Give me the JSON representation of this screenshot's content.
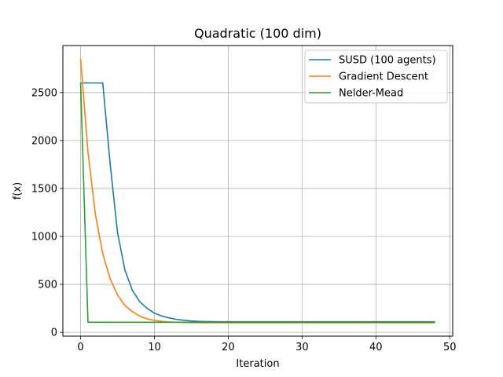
{
  "chart_data": {
    "type": "line",
    "title": "Quadratic (100 dim)",
    "xlabel": "Iteration",
    "ylabel": "f(x)",
    "xlim": [
      -2.4,
      50.4
    ],
    "ylim": [
      -40,
      2990
    ],
    "xticks": [
      0,
      10,
      20,
      30,
      40,
      50
    ],
    "yticks": [
      0,
      500,
      1000,
      1500,
      2000,
      2500
    ],
    "grid": true,
    "legend_position": "top-right",
    "series": [
      {
        "name": "SUSD (100 agents)",
        "color": "#1f77b4",
        "x": [
          0,
          1,
          2,
          3,
          4,
          5,
          6,
          7,
          8,
          9,
          10,
          11,
          12,
          13,
          14,
          15,
          16,
          17,
          18,
          19,
          20,
          21,
          22,
          23,
          24,
          25,
          26,
          27,
          28,
          29,
          30,
          31,
          32,
          33,
          34,
          35,
          36,
          37,
          38,
          39,
          40,
          41,
          42,
          43,
          44,
          45,
          46,
          47,
          48
        ],
        "y": [
          2600,
          2600,
          2600,
          2600,
          1760,
          1040,
          650,
          440,
          320,
          250,
          200,
          170,
          150,
          135,
          125,
          118,
          114,
          112,
          111,
          110,
          110,
          110,
          110,
          110,
          110,
          110,
          110,
          110,
          110,
          110,
          110,
          110,
          110,
          110,
          110,
          110,
          110,
          110,
          110,
          110,
          110,
          110,
          110,
          110,
          110,
          110,
          110,
          110,
          110
        ]
      },
      {
        "name": "Gradient Descent",
        "color": "#ff7f0e",
        "x": [
          0,
          1,
          2,
          3,
          4,
          5,
          6,
          7,
          8,
          9,
          10,
          11,
          12,
          13,
          14,
          15,
          16,
          17,
          18,
          19,
          20,
          21,
          22,
          23,
          24,
          25,
          26,
          27,
          28,
          29,
          30,
          31,
          32,
          33,
          34,
          35,
          36,
          37,
          38,
          39,
          40,
          41,
          42,
          43,
          44,
          45,
          46,
          47,
          48
        ],
        "y": [
          2850,
          1880,
          1230,
          820,
          560,
          390,
          280,
          215,
          170,
          140,
          125,
          114,
          108,
          105,
          103,
          102,
          101,
          100,
          100,
          100,
          100,
          100,
          100,
          100,
          100,
          100,
          100,
          100,
          100,
          100,
          100,
          100,
          100,
          100,
          100,
          100,
          100,
          100,
          100,
          100,
          100,
          100,
          100,
          100,
          100,
          100,
          100,
          100,
          100
        ]
      },
      {
        "name": "Nelder-Mead",
        "color": "#2ca02c",
        "x": [
          0,
          1,
          2,
          3,
          4,
          5,
          6,
          7,
          8,
          9,
          10,
          11,
          12,
          13,
          14,
          15,
          16,
          17,
          18,
          19,
          20,
          21,
          22,
          23,
          24,
          25,
          26,
          27,
          28,
          29,
          30,
          31,
          32,
          33,
          34,
          35,
          36,
          37,
          38,
          39,
          40,
          41,
          42,
          43,
          44,
          45,
          46,
          47,
          48
        ],
        "y": [
          2600,
          105,
          105,
          105,
          105,
          105,
          105,
          105,
          105,
          105,
          105,
          105,
          105,
          105,
          105,
          105,
          105,
          105,
          105,
          105,
          105,
          105,
          105,
          105,
          105,
          105,
          105,
          105,
          105,
          105,
          105,
          105,
          105,
          105,
          105,
          105,
          105,
          105,
          105,
          105,
          105,
          105,
          105,
          105,
          105,
          105,
          105,
          105,
          105
        ]
      }
    ]
  }
}
